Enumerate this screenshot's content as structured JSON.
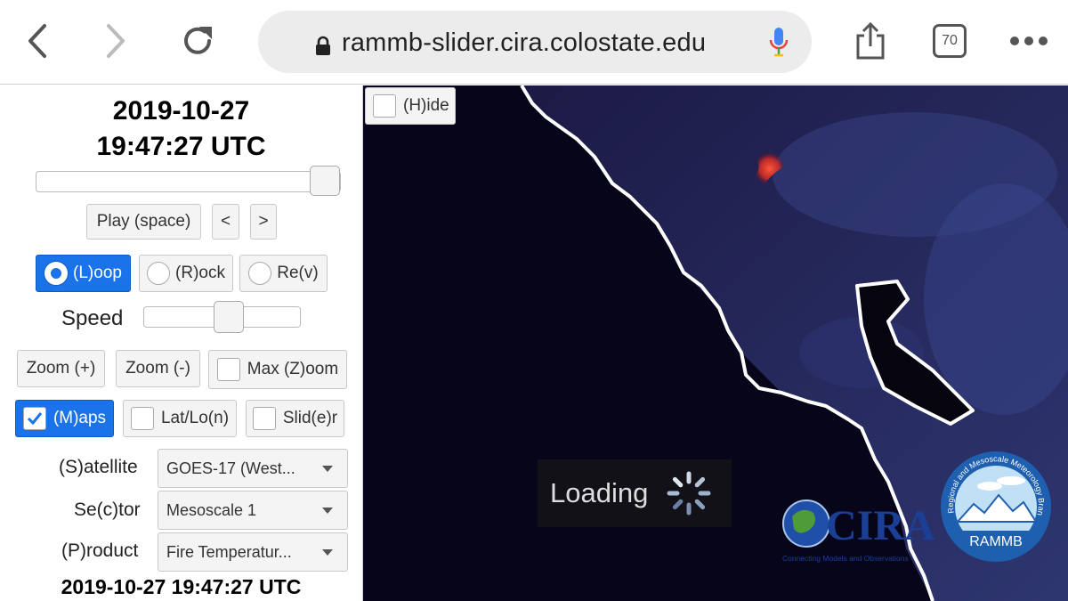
{
  "browser": {
    "url": "rammb-slider.cira.colostate.edu",
    "tab_count": "70",
    "icons": {
      "back": "back-arrow-icon",
      "forward": "forward-arrow-icon",
      "reload": "reload-icon",
      "lock": "lock-icon",
      "mic": "microphone-icon",
      "share": "share-icon",
      "more": "more-dots-icon"
    }
  },
  "panel": {
    "date": "2019-10-27",
    "time": "19:47:27 UTC",
    "timeline_position": 1.0,
    "play_label": "Play (space)",
    "prev_label": "<",
    "next_label": ">",
    "loop_label": "(L)oop",
    "rock_label": "(R)ock",
    "rev_label": "Re(v)",
    "selected_mode": "loop",
    "speed_label": "Speed",
    "speed_value": 0.55,
    "zoom_in_label": "Zoom (+)",
    "zoom_out_label": "Zoom (-)",
    "max_zoom_label": "Max (Z)oom",
    "maps_label": "(M)aps",
    "maps_checked": true,
    "latlon_label": "Lat/Lo(n)",
    "slider_label": "Slid(e)r",
    "satellite_label": "(S)atellite",
    "satellite_value": "GOES-17 (West...",
    "sector_label": "Se(c)tor",
    "sector_value": "Mesoscale 1",
    "product_label": "(P)roduct",
    "product_value": "Fire Temperatur...",
    "footer_datetime": "2019-10-27 19:47:27 UTC"
  },
  "viewport": {
    "hide_label": "(H)ide",
    "loading_label": "Loading",
    "cira_logo_text": "CIRA",
    "cira_tagline": "Connecting Models and Observations",
    "rammb_logo_text": "RAMMB",
    "rammb_ring_text": "Regional and Mesoscale Meteorology Branch",
    "colors": {
      "land": "#2b2f6b",
      "ocean": "#07051a",
      "coastline": "#ffffff",
      "fire": "#ff3a2a",
      "accent": "#1a73e8"
    }
  }
}
